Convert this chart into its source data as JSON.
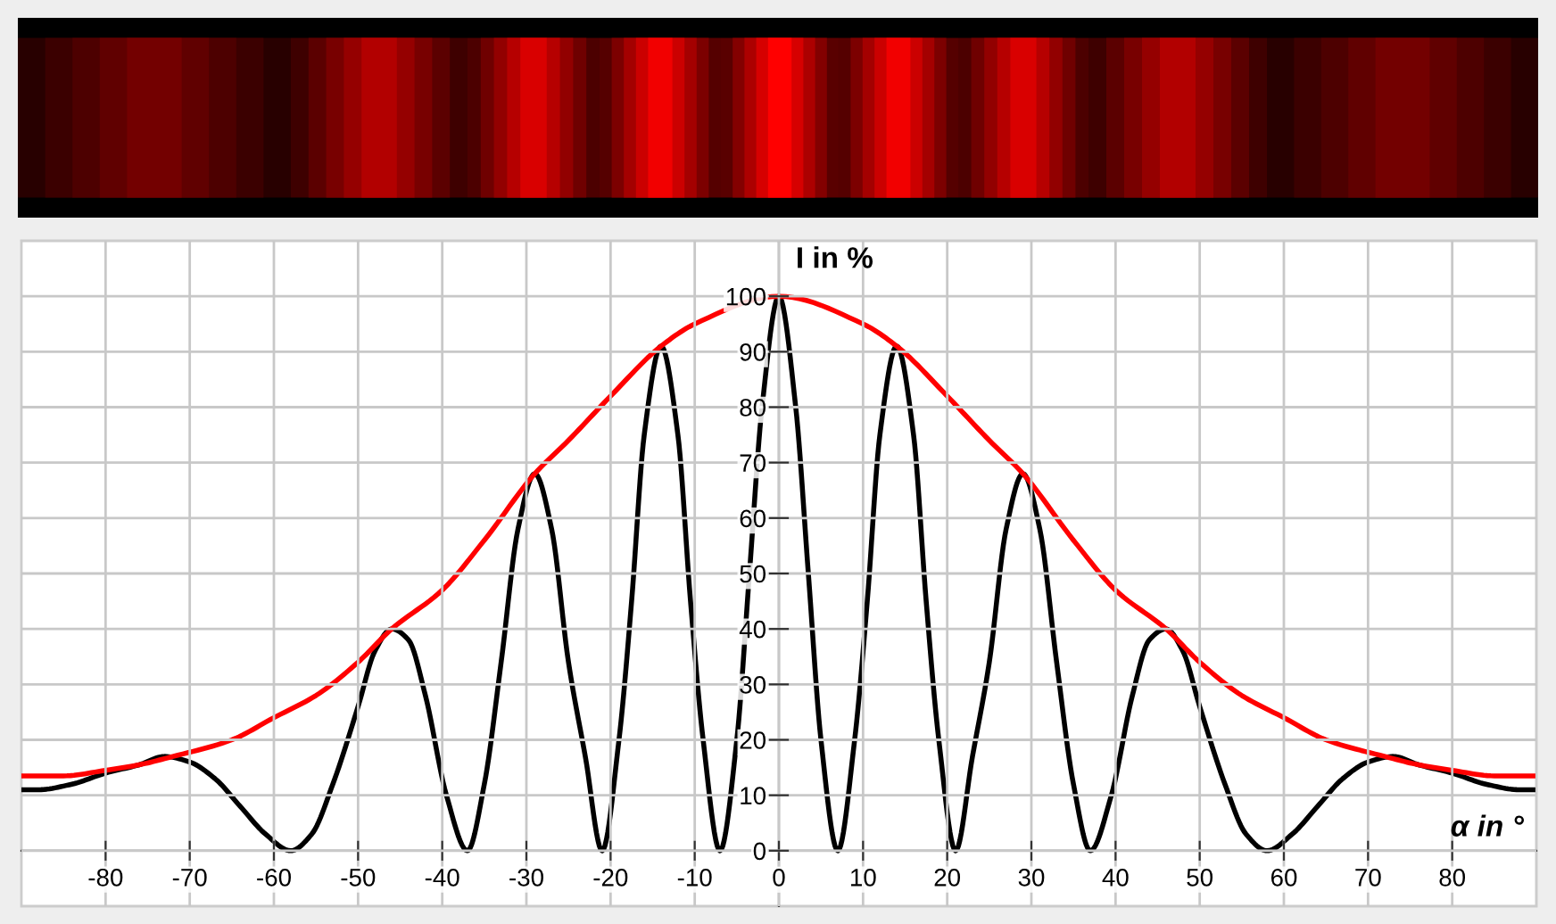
{
  "chart_data": {
    "type": "line",
    "xlabel": "α in °",
    "ylabel": "I in %",
    "xlim": [
      -90,
      90
    ],
    "ylim": [
      -10,
      110
    ],
    "xticks": [
      -80,
      -70,
      -60,
      -50,
      -40,
      -30,
      -20,
      -10,
      0,
      10,
      20,
      30,
      40,
      50,
      60,
      70,
      80
    ],
    "yticks": [
      0,
      10,
      20,
      30,
      40,
      50,
      60,
      70,
      80,
      90,
      100
    ],
    "grid": true,
    "legend": false,
    "marker": "none",
    "line_style": "solid",
    "series": [
      {
        "color": "#000000",
        "x": [
          -90,
          -88,
          -84,
          -80,
          -76,
          -73,
          -70,
          -67,
          -64,
          -61,
          -58,
          -55.5,
          -53,
          -50,
          -48,
          -46,
          -44,
          -42,
          -39.5,
          -37,
          -35,
          -33,
          -31,
          -29,
          -27,
          -25,
          -23,
          -21,
          -19,
          -17.5,
          -16,
          -14,
          -12,
          -10.5,
          -9,
          -7,
          -5,
          -3.5,
          -2,
          0,
          2,
          3.5,
          5,
          7,
          9,
          10.5,
          12,
          14,
          16,
          17.5,
          19,
          21,
          23,
          25,
          27,
          29,
          31,
          33,
          35,
          37,
          39.5,
          42,
          44,
          46,
          48,
          50,
          53,
          55.5,
          58,
          61,
          64,
          67,
          70,
          73,
          76,
          80,
          84,
          88,
          90
        ],
        "values": [
          11,
          11,
          12,
          14,
          15.5,
          17,
          16,
          13,
          8,
          3,
          0,
          3,
          12,
          26,
          36,
          40,
          38,
          28,
          10,
          0,
          12,
          34,
          58,
          68,
          58,
          34,
          17,
          0,
          20,
          45,
          75,
          91,
          75,
          45,
          20,
          0,
          20,
          50,
          80,
          100,
          80,
          50,
          20,
          0,
          20,
          45,
          75,
          91,
          75,
          45,
          20,
          0,
          17,
          34,
          58,
          68,
          58,
          34,
          12,
          0,
          10,
          28,
          38,
          40,
          36,
          26,
          12,
          3,
          0,
          3,
          8,
          13,
          16,
          17,
          15.5,
          14,
          12,
          11,
          11
        ]
      },
      {
        "color": "#ff0000",
        "x": [
          -90,
          -85,
          -80,
          -76,
          -72,
          -65,
          -60,
          -55,
          -50,
          -46,
          -40,
          -35,
          -29,
          -25,
          -20,
          -14,
          -10,
          0,
          10,
          14,
          20,
          25,
          29,
          35,
          40,
          46,
          50,
          55,
          60,
          65,
          72,
          76,
          80,
          85,
          90
        ],
        "values": [
          13.5,
          13.5,
          14.5,
          15.5,
          17,
          20,
          24,
          28,
          34,
          40,
          47,
          56,
          68,
          74,
          82,
          91,
          95,
          100,
          95,
          91,
          82,
          74,
          68,
          56,
          47,
          40,
          34,
          28,
          24,
          20,
          17,
          15.5,
          14.5,
          13.5,
          13.5
        ]
      }
    ]
  }
}
